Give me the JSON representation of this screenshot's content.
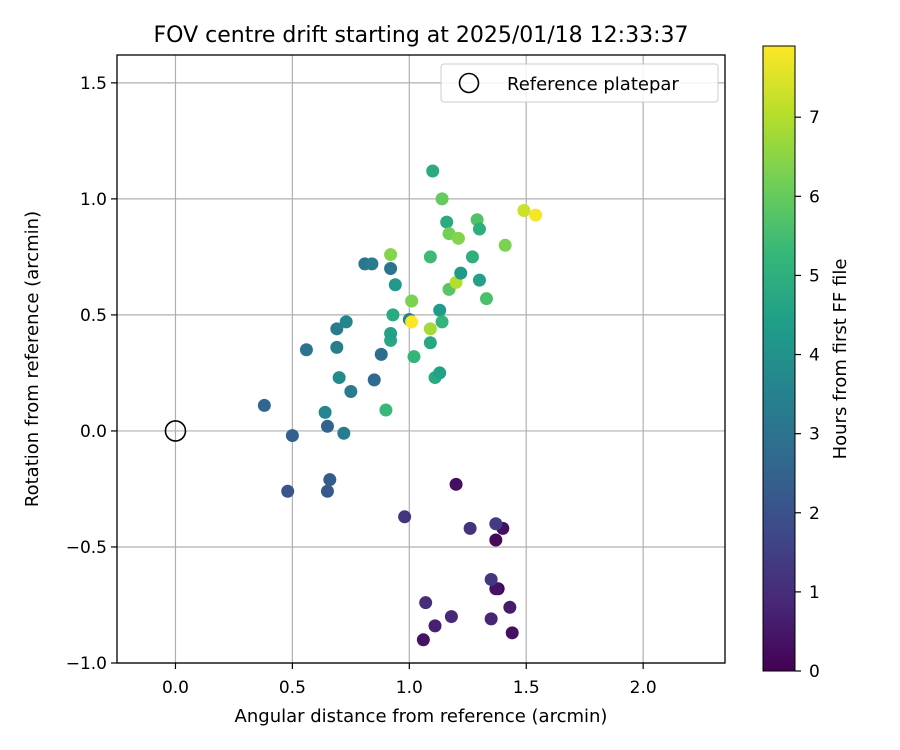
{
  "chart_data": {
    "type": "scatter",
    "title": "FOV centre drift starting at 2025/01/18 12:33:37",
    "xlabel": "Angular distance from reference (arcmin)",
    "ylabel": "Rotation from reference (arcmin)",
    "xlim": [
      -0.25,
      2.35
    ],
    "ylim": [
      -1.0,
      1.62
    ],
    "xticks": [
      0.0,
      0.5,
      1.0,
      1.5,
      2.0
    ],
    "xtick_labels": [
      "0.0",
      "0.5",
      "1.0",
      "1.5",
      "2.0"
    ],
    "yticks": [
      -1.0,
      -0.5,
      0.0,
      0.5,
      1.0,
      1.5
    ],
    "ytick_labels": [
      "−1.0",
      "−0.5",
      "0.0",
      "0.5",
      "1.0",
      "1.5"
    ],
    "grid": true,
    "legend": {
      "position": "top-right",
      "entries": [
        "Reference platepar"
      ]
    },
    "reference_point": {
      "label": "Reference platepar",
      "x": 0.0,
      "y": 0.0,
      "marker": "open-circle"
    },
    "colorbar": {
      "label": "Hours from first FF file",
      "range": [
        0,
        7.9
      ],
      "ticks": [
        0,
        1,
        2,
        3,
        4,
        5,
        6,
        7
      ],
      "tick_labels": [
        "0",
        "1",
        "2",
        "3",
        "4",
        "5",
        "6",
        "7"
      ],
      "colormap": "viridis",
      "colors": [
        "#440154",
        "#482878",
        "#3e4989",
        "#31688e",
        "#26828e",
        "#1f9e89",
        "#35b779",
        "#6ece58",
        "#b5de2b",
        "#fde725"
      ]
    },
    "series": [
      {
        "points": [
          [
            1.06,
            -0.9,
            0.4
          ],
          [
            1.11,
            -0.84,
            0.7
          ],
          [
            1.44,
            -0.87,
            0.3
          ],
          [
            1.18,
            -0.8,
            0.9
          ],
          [
            1.35,
            -0.81,
            0.8
          ],
          [
            1.43,
            -0.76,
            0.6
          ],
          [
            1.07,
            -0.74,
            1.0
          ],
          [
            1.38,
            -0.68,
            0.1
          ],
          [
            1.37,
            -0.68,
            0.4
          ],
          [
            1.35,
            -0.64,
            1.3
          ],
          [
            1.37,
            -0.47,
            0.2
          ],
          [
            1.4,
            -0.42,
            0.3
          ],
          [
            1.37,
            -0.4,
            1.4
          ],
          [
            1.26,
            -0.42,
            1.2
          ],
          [
            0.98,
            -0.37,
            1.2
          ],
          [
            1.2,
            -0.23,
            0.3
          ],
          [
            0.48,
            -0.26,
            2.1
          ],
          [
            0.65,
            -0.26,
            2.2
          ],
          [
            0.66,
            -0.21,
            2.3
          ],
          [
            0.5,
            -0.02,
            2.4
          ],
          [
            0.65,
            0.02,
            2.5
          ],
          [
            0.72,
            -0.01,
            3.3
          ],
          [
            0.38,
            0.11,
            2.6
          ],
          [
            0.64,
            0.08,
            3.6
          ],
          [
            0.75,
            0.17,
            3.3
          ],
          [
            0.85,
            0.22,
            2.7
          ],
          [
            0.7,
            0.23,
            3.8
          ],
          [
            0.56,
            0.35,
            3.0
          ],
          [
            0.69,
            0.36,
            3.4
          ],
          [
            0.88,
            0.33,
            2.8
          ],
          [
            0.69,
            0.44,
            3.3
          ],
          [
            0.73,
            0.47,
            3.6
          ],
          [
            0.92,
            0.39,
            4.7
          ],
          [
            0.92,
            0.42,
            4.5
          ],
          [
            0.93,
            0.5,
            4.8
          ],
          [
            0.81,
            0.72,
            3.1
          ],
          [
            0.84,
            0.72,
            3.3
          ],
          [
            0.92,
            0.7,
            3.0
          ],
          [
            0.94,
            0.63,
            4.2
          ],
          [
            0.9,
            0.09,
            5.3
          ],
          [
            1.0,
            0.48,
            3.6
          ],
          [
            1.01,
            0.56,
            6.3
          ],
          [
            1.02,
            0.32,
            5.2
          ],
          [
            1.09,
            0.38,
            4.7
          ],
          [
            1.11,
            0.23,
            4.8
          ],
          [
            1.13,
            0.25,
            4.5
          ],
          [
            1.09,
            0.44,
            6.8
          ],
          [
            1.13,
            0.52,
            4.3
          ],
          [
            1.14,
            0.47,
            5.2
          ],
          [
            1.17,
            0.61,
            5.8
          ],
          [
            1.2,
            0.64,
            7.0
          ],
          [
            1.09,
            0.75,
            5.4
          ],
          [
            1.22,
            0.68,
            4.3
          ],
          [
            1.27,
            0.75,
            5.0
          ],
          [
            1.3,
            0.65,
            4.5
          ],
          [
            1.33,
            0.57,
            5.6
          ],
          [
            1.1,
            1.12,
            4.8
          ],
          [
            1.14,
            1.0,
            6.0
          ],
          [
            1.16,
            0.9,
            4.8
          ],
          [
            1.17,
            0.85,
            6.2
          ],
          [
            1.21,
            0.83,
            6.4
          ],
          [
            1.29,
            0.91,
            5.7
          ],
          [
            1.3,
            0.87,
            5.0
          ],
          [
            0.92,
            0.76,
            6.4
          ],
          [
            1.41,
            0.8,
            6.3
          ],
          [
            1.49,
            0.95,
            7.3
          ],
          [
            1.54,
            0.93,
            7.8
          ],
          [
            1.01,
            0.47,
            7.9
          ]
        ]
      }
    ]
  }
}
